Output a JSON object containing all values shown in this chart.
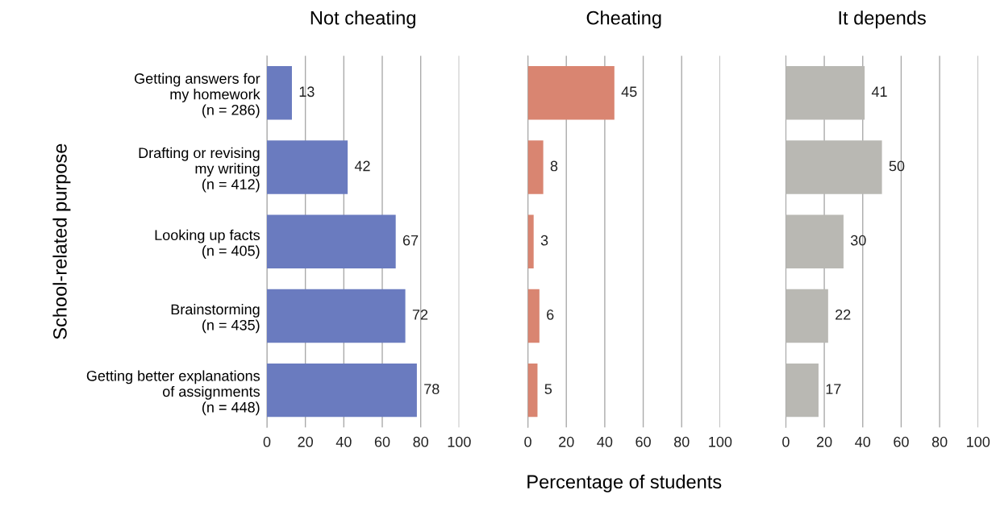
{
  "chart_data": [
    {
      "type": "bar",
      "orientation": "horizontal",
      "title": "Not cheating",
      "ylabel": "School-related purpose",
      "categories": [
        "Getting answers for\nmy homework\n(n = 286)",
        "Drafting or revising\nmy writing\n(n = 412)",
        "Looking up facts\n(n = 405)",
        "Brainstorming\n(n = 435)",
        "Getting better explanations\nof assignments\n(n = 448)"
      ],
      "values": [
        13,
        42,
        67,
        72,
        78
      ],
      "color": "#6a7bbf",
      "xlim": [
        0,
        100
      ],
      "xticks": [
        0,
        20,
        40,
        60,
        80,
        100
      ],
      "grid": "x",
      "data_labels": true
    },
    {
      "type": "bar",
      "orientation": "horizontal",
      "title": "Cheating",
      "xlabel": "Percentage of students",
      "categories": [
        null,
        null,
        null,
        null,
        null
      ],
      "values": [
        45,
        8,
        3,
        6,
        5
      ],
      "color": "#d98571",
      "xlim": [
        0,
        100
      ],
      "xticks": [
        0,
        20,
        40,
        60,
        80,
        100
      ],
      "grid": "x",
      "data_labels": true,
      "tick_labels": "x"
    },
    {
      "type": "bar",
      "orientation": "horizontal",
      "title": "It depends",
      "categories": [
        null,
        null,
        null,
        null,
        null
      ],
      "values": [
        41,
        50,
        30,
        22,
        17
      ],
      "color": "#b9b8b3",
      "xlim": [
        0,
        100
      ],
      "xticks": [
        0,
        20,
        40,
        60,
        80,
        100
      ],
      "grid": "x",
      "data_labels": true,
      "tick_labels": "x"
    }
  ]
}
